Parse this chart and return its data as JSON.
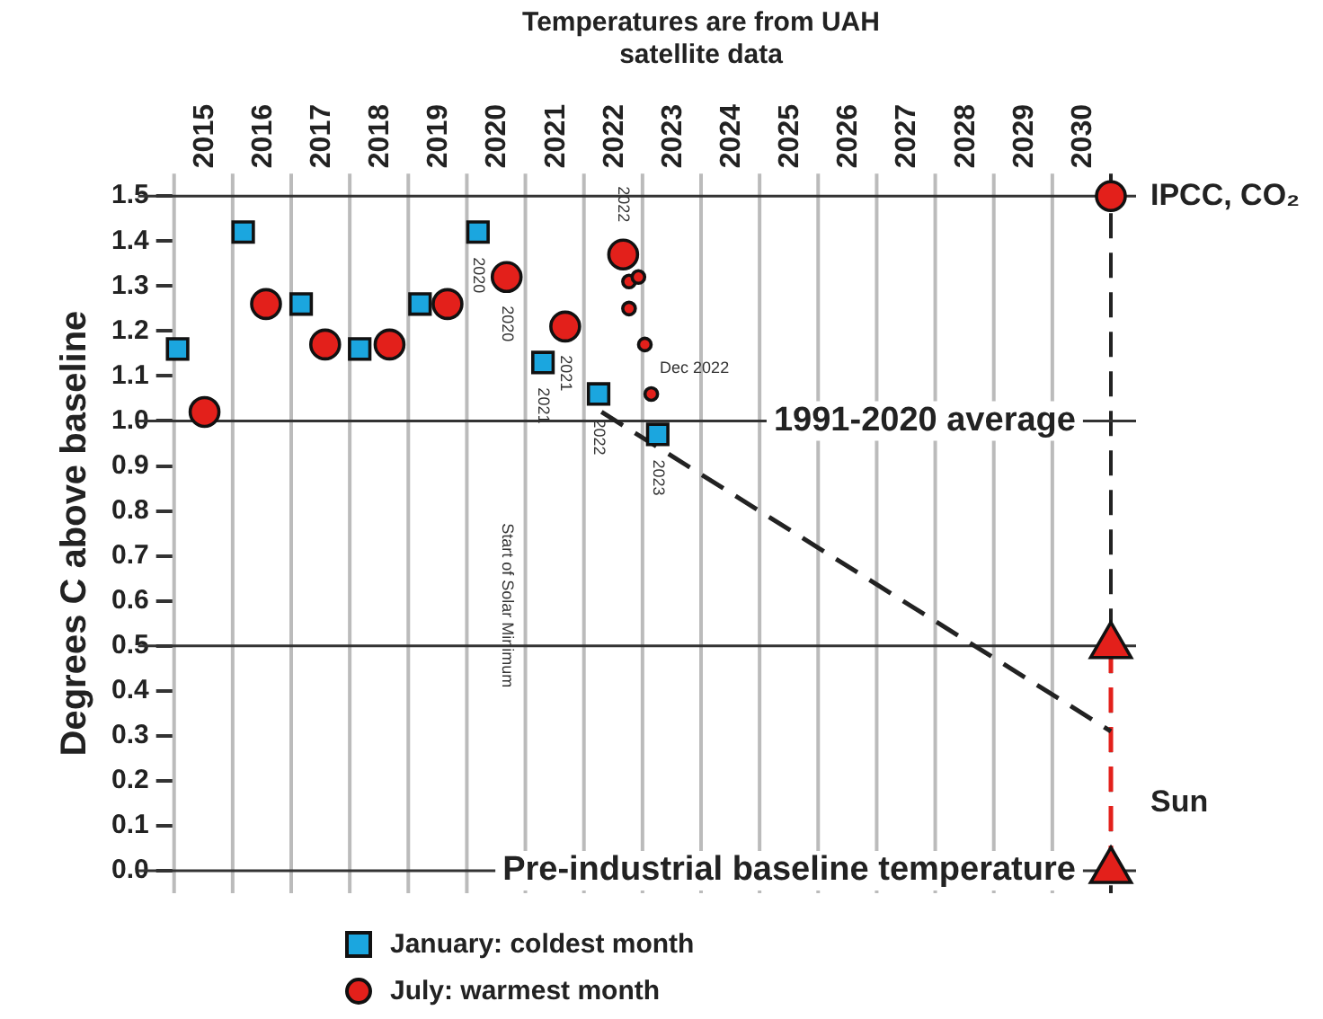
{
  "chart_data": {
    "type": "scatter",
    "title": "Temperatures are from UAH satellite data",
    "ylabel": "Degrees C above baseline",
    "xlim": [
      2015,
      2031
    ],
    "ylim": [
      -0.05,
      1.55
    ],
    "xticks": [
      {
        "value": 2015.5,
        "label": "2015"
      },
      {
        "value": 2016.5,
        "label": "2016"
      },
      {
        "value": 2017.5,
        "label": "2017"
      },
      {
        "value": 2018.5,
        "label": "2018"
      },
      {
        "value": 2019.5,
        "label": "2019"
      },
      {
        "value": 2020.5,
        "label": "2020"
      },
      {
        "value": 2021.5,
        "label": "2021"
      },
      {
        "value": 2022.5,
        "label": "2022"
      },
      {
        "value": 2023.5,
        "label": "2023"
      },
      {
        "value": 2024.5,
        "label": "2024"
      },
      {
        "value": 2025.5,
        "label": "2025"
      },
      {
        "value": 2026.5,
        "label": "2026"
      },
      {
        "value": 2027.5,
        "label": "2027"
      },
      {
        "value": 2028.5,
        "label": "2028"
      },
      {
        "value": 2029.5,
        "label": "2029"
      },
      {
        "value": 2030.5,
        "label": "2030"
      }
    ],
    "yticks": [
      {
        "value": 0,
        "label": "0.0"
      },
      0.1,
      0.2,
      0.3,
      0.4,
      0.5,
      0.6,
      0.7,
      0.8,
      0.9,
      {
        "value": 1,
        "label": "1.0"
      },
      1.1,
      1.2,
      1.3,
      1.4,
      1.5
    ],
    "legend": "bottom",
    "series": [
      {
        "name": "January: coldest month",
        "marker": "square",
        "color": "#1ba6df",
        "x": [
          2015.06,
          2016.18,
          2017.17,
          2018.17,
          2019.2,
          2020.19,
          2021.3,
          2022.25,
          2023.26
        ],
        "values": [
          1.16,
          1.42,
          1.26,
          1.16,
          1.26,
          1.42,
          1.13,
          1.06,
          0.97
        ]
      },
      {
        "name": "July: warmest month",
        "marker": "circle",
        "color": "#e3201b",
        "x": [
          2015.52,
          2016.57,
          2017.58,
          2018.68,
          2019.67,
          2020.68,
          2021.68,
          2022.67
        ],
        "values": [
          1.02,
          1.26,
          1.17,
          1.17,
          1.26,
          1.32,
          1.21,
          1.37
        ]
      },
      {
        "marker": "circle",
        "color": "#e3201b",
        "x": [
          2022.77,
          2022.93,
          2022.77,
          2023.04,
          2023.15
        ],
        "values": [
          1.31,
          1.32,
          1.25,
          1.17,
          1.06
        ]
      },
      {
        "type": "line",
        "marker": "none",
        "line_style": "dashed",
        "color": "#222222",
        "x": [
          2022.3,
          2031
        ],
        "values": [
          1.02,
          0.31
        ]
      },
      {
        "name": "IPCC, CO₂",
        "marker": "circle",
        "color": "#e3201b",
        "x": [
          2031
        ],
        "values": [
          1.5
        ]
      },
      {
        "marker": "triangle",
        "color": "#e3201b",
        "x": [
          2031,
          2031
        ],
        "values": [
          0.5,
          0
        ]
      },
      {
        "name": "Sun",
        "type": "line",
        "marker": "none",
        "line_style": "dashed",
        "color": "#e3201b",
        "x": [
          2031,
          2031
        ],
        "values": [
          0,
          0.5
        ]
      }
    ],
    "ref_lines": [
      {
        "axis": "x",
        "value": 2015,
        "color": "#bbbbbb"
      },
      {
        "axis": "x",
        "value": 2016,
        "color": "#bbbbbb"
      },
      {
        "axis": "x",
        "value": 2017,
        "color": "#bbbbbb"
      },
      {
        "axis": "x",
        "value": 2018,
        "color": "#bbbbbb"
      },
      {
        "axis": "x",
        "value": 2019,
        "color": "#bbbbbb"
      },
      {
        "axis": "x",
        "value": 2020,
        "color": "#bbbbbb"
      },
      {
        "axis": "x",
        "value": 2021,
        "color": "#bbbbbb"
      },
      {
        "axis": "x",
        "value": 2022,
        "color": "#bbbbbb"
      },
      {
        "axis": "x",
        "value": 2023,
        "color": "#bbbbbb"
      },
      {
        "axis": "x",
        "value": 2024,
        "color": "#bbbbbb"
      },
      {
        "axis": "x",
        "value": 2025,
        "color": "#bbbbbb"
      },
      {
        "axis": "x",
        "value": 2026,
        "color": "#bbbbbb"
      },
      {
        "axis": "x",
        "value": 2027,
        "color": "#bbbbbb"
      },
      {
        "axis": "x",
        "value": 2028,
        "color": "#bbbbbb"
      },
      {
        "axis": "x",
        "value": 2029,
        "color": "#bbbbbb"
      },
      {
        "axis": "x",
        "value": 2030,
        "color": "#bbbbbb"
      },
      {
        "axis": "x",
        "value": 2031,
        "color": "#222222",
        "line_style": "dashed"
      },
      {
        "axis": "y",
        "value": 1.5,
        "color": "#333333"
      },
      {
        "axis": "y",
        "value": 1,
        "color": "#333333",
        "label": "1991-2020 average"
      },
      {
        "axis": "y",
        "value": 0.5,
        "color": "#333333"
      },
      {
        "axis": "y",
        "value": 0,
        "color": "#333333",
        "label": "Pre-industrial baseline temperature"
      }
    ],
    "annotations": [
      {
        "text": "2020",
        "x": 2020.19,
        "y": 1.42
      },
      {
        "text": "2020",
        "x": 2020.68,
        "y": 1.32
      },
      {
        "text": "2021",
        "x": 2021.68,
        "y": 1.21
      },
      {
        "text": "2021",
        "x": 2021.3,
        "y": 1.13
      },
      {
        "text": "2022",
        "x": 2022.25,
        "y": 1.06
      },
      {
        "text": "2023",
        "x": 2023.26,
        "y": 0.97
      },
      {
        "text": "2022",
        "x": 2022.67,
        "y": 1.37
      },
      "Start of Solar Minimum",
      {
        "text": "Dec 2022",
        "x": 2023.15,
        "y": 1.06
      }
    ]
  }
}
